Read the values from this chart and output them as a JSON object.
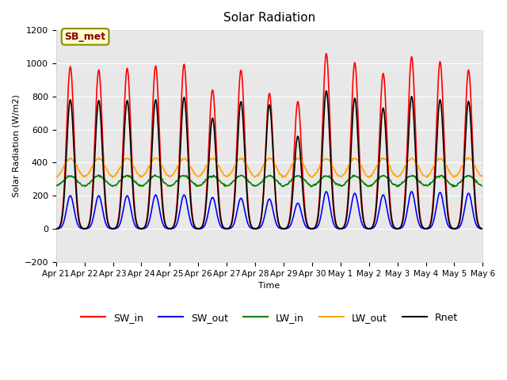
{
  "title": "Solar Radiation",
  "ylabel": "Solar Radiation (W/m2)",
  "xlabel": "Time",
  "ylim": [
    -200,
    1200
  ],
  "annotation_text": "SB_met",
  "annotation_bg": "#ffffcc",
  "annotation_fg": "#8B0000",
  "legend_entries": [
    "SW_in",
    "SW_out",
    "LW_in",
    "LW_out",
    "Rnet"
  ],
  "legend_colors": [
    "red",
    "blue",
    "green",
    "orange",
    "black"
  ],
  "n_days": 15,
  "tick_labels": [
    "Apr 21",
    "Apr 22",
    "Apr 23",
    "Apr 24",
    "Apr 25",
    "Apr 26",
    "Apr 27",
    "Apr 28",
    "Apr 29",
    "Apr 30",
    "May 1",
    "May 2",
    "May 3",
    "May 4",
    "May 5",
    "May 6"
  ],
  "sw_in_peaks": [
    980,
    960,
    970,
    985,
    995,
    840,
    960,
    820,
    770,
    1060,
    1005,
    940,
    1040,
    1010,
    960
  ],
  "sw_out_peaks": [
    200,
    200,
    200,
    205,
    205,
    190,
    185,
    180,
    155,
    225,
    215,
    205,
    225,
    220,
    215
  ],
  "rnet_peaks": [
    780,
    775,
    775,
    780,
    795,
    670,
    770,
    750,
    560,
    835,
    790,
    730,
    800,
    780,
    770
  ],
  "lw_in_base": 290,
  "lw_out_base": 370,
  "lw_in_amplitude": 30,
  "lw_out_amplitude": 55
}
